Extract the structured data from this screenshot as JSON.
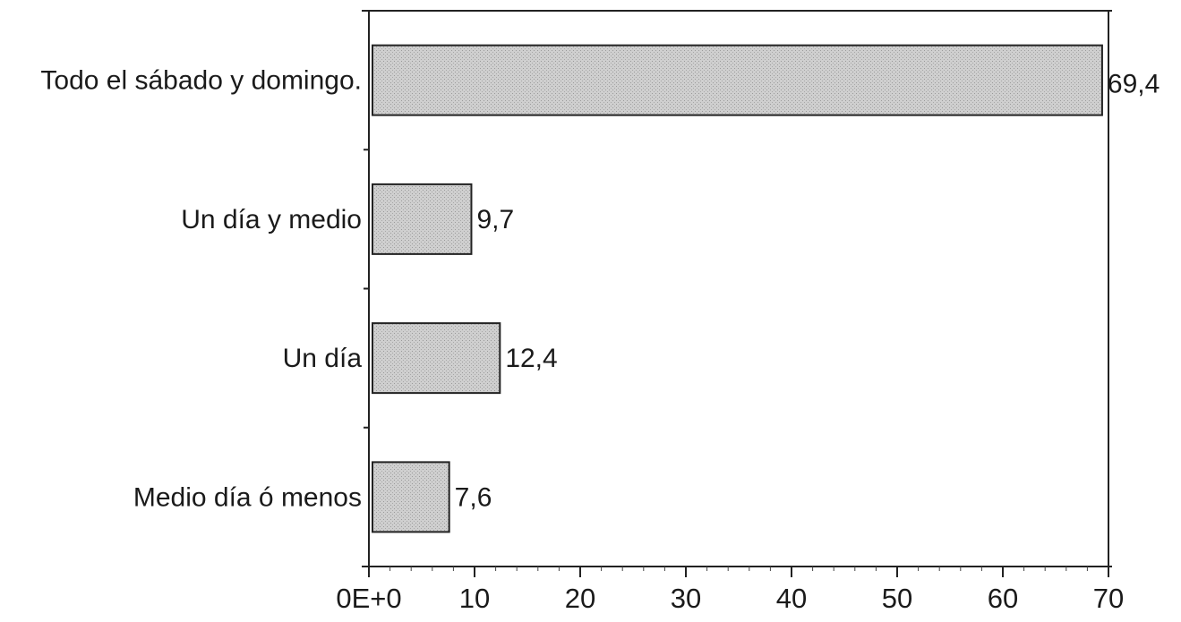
{
  "chart_data": {
    "type": "bar",
    "orientation": "horizontal",
    "categories": [
      "Todo el sábado y domingo.",
      "Un día y medio",
      "Un día",
      "Medio día ó menos"
    ],
    "values": [
      69.4,
      9.7,
      12.4,
      7.6
    ],
    "value_labels": [
      "69,4",
      "9,7",
      "12,4",
      "7,6"
    ],
    "xlim": [
      0,
      70
    ],
    "x_ticks": [
      0,
      10,
      20,
      30,
      40,
      50,
      60,
      70
    ],
    "x_tick_labels": [
      "0E+0",
      "10",
      "20",
      "30",
      "40",
      "50",
      "60",
      "70"
    ],
    "title": "",
    "xlabel": "",
    "ylabel": "",
    "grid": false,
    "legend": "none",
    "bar_color": "#c8c8c8",
    "frame_color": "#222222"
  }
}
